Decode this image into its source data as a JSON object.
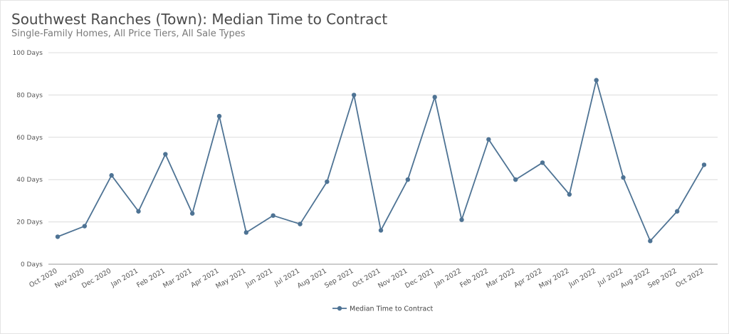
{
  "chart_data": {
    "type": "line",
    "title": "Southwest Ranches (Town): Median Time to Contract",
    "subtitle": "Single-Family Homes, All Price Tiers, All Sale Types",
    "categories": [
      "Oct 2020",
      "Nov 2020",
      "Dec 2020",
      "Jan 2021",
      "Feb 2021",
      "Mar 2021",
      "Apr 2021",
      "May 2021",
      "Jun 2021",
      "Jul 2021",
      "Aug 2021",
      "Sep 2021",
      "Oct 2021",
      "Nov 2021",
      "Dec 2021",
      "Jan 2022",
      "Feb 2022",
      "Mar 2022",
      "Apr 2022",
      "May 2022",
      "Jun 2022",
      "Jul 2022",
      "Aug 2022",
      "Sep 2022",
      "Oct 2022"
    ],
    "series": [
      {
        "name": "Median Time to Contract",
        "color": "#4e7394",
        "values": [
          13,
          18,
          42,
          25,
          52,
          24,
          70,
          15,
          23,
          19,
          39,
          80,
          16,
          40,
          79,
          21,
          59,
          40,
          48,
          33,
          87,
          41,
          11,
          25,
          47
        ]
      }
    ],
    "y_ticks": [
      "0 Days",
      "20 Days",
      "40 Days",
      "60 Days",
      "80 Days",
      "100 Days"
    ],
    "ylim": [
      0,
      100
    ],
    "grid": true,
    "legend_position": "bottom-center",
    "xlabel": "",
    "ylabel": ""
  }
}
